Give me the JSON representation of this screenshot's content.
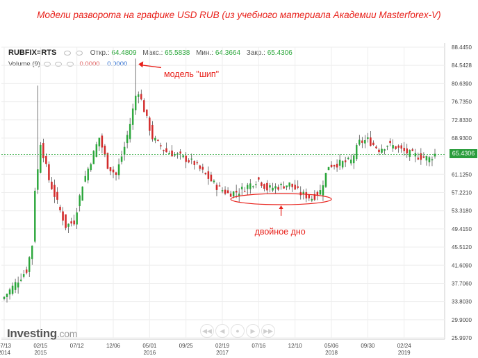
{
  "caption": "Модели разворота на графике USD RUB (из учебного материала Академии Masterforex-V)",
  "header": {
    "symbol": "RUBFIX=RTS",
    "open_label": "Откр.:",
    "open_value": "64.4809",
    "high_label": "Макс.:",
    "high_value": "65.5838",
    "low_label": "Мин.:",
    "low_value": "64.3664",
    "close_label": "Закр.:",
    "close_value": "65.4306"
  },
  "volume": {
    "label": "Volume (9)",
    "value_red": "0.0000",
    "value_blue": "0.0000"
  },
  "current_price_tag": "65.4306",
  "annotations": {
    "spike_label": "модель \"шип\"",
    "double_bottom_label": "двойное дно"
  },
  "logo": {
    "main": "Investing",
    "suffix": ".com"
  },
  "colors": {
    "up": "#2aa63a",
    "down": "#d22b2b",
    "annotation": "#e8201a",
    "price_line": "#2aa63a",
    "grid": "#eeeeee"
  },
  "chart_data": {
    "type": "candlestick",
    "y_ticks": [
      "88.4450",
      "84.5428",
      "80.6390",
      "76.7350",
      "72.8330",
      "68.9300",
      "65.0258",
      "61.1250",
      "57.2210",
      "53.3180",
      "49.4150",
      "45.5120",
      "41.6090",
      "37.7060",
      "33.8030",
      "29.9000",
      "25.9970"
    ],
    "ylim": [
      25.997,
      88.445
    ],
    "x_ticks": [
      {
        "label": "07/13",
        "year": "2014"
      },
      {
        "label": "02/15",
        "year": "2015"
      },
      {
        "label": "07/12",
        "year": ""
      },
      {
        "label": "12/06",
        "year": ""
      },
      {
        "label": "05/01",
        "year": "2016"
      },
      {
        "label": "09/25",
        "year": ""
      },
      {
        "label": "02/19",
        "year": "2017"
      },
      {
        "label": "07/16",
        "year": ""
      },
      {
        "label": "12/10",
        "year": ""
      },
      {
        "label": "05/06",
        "year": "2018"
      },
      {
        "label": "09/30",
        "year": ""
      },
      {
        "label": "02/24",
        "year": "2019"
      }
    ],
    "x_tick_index": [
      0,
      13,
      26,
      39,
      52,
      65,
      78,
      91,
      104,
      117,
      130,
      143
    ],
    "n_periods": 155,
    "close_path": [
      [
        0,
        34.8
      ],
      [
        8,
        40.5
      ],
      [
        10,
        46
      ],
      [
        11,
        58
      ],
      [
        12,
        62
      ],
      [
        13,
        68
      ],
      [
        16,
        60
      ],
      [
        19,
        55
      ],
      [
        22,
        50
      ],
      [
        25,
        51
      ],
      [
        28,
        59
      ],
      [
        31,
        64
      ],
      [
        34,
        69
      ],
      [
        37,
        63
      ],
      [
        40,
        61
      ],
      [
        43,
        67
      ],
      [
        45,
        72
      ],
      [
        47,
        78
      ],
      [
        48,
        79
      ],
      [
        50,
        75
      ],
      [
        53,
        69
      ],
      [
        58,
        66
      ],
      [
        63,
        65
      ],
      [
        68,
        63.5
      ],
      [
        72,
        61
      ],
      [
        76,
        58.5
      ],
      [
        80,
        57
      ],
      [
        84,
        57.5
      ],
      [
        88,
        59
      ],
      [
        91,
        60
      ],
      [
        94,
        58
      ],
      [
        98,
        58.5
      ],
      [
        102,
        59
      ],
      [
        106,
        57
      ],
      [
        110,
        56
      ],
      [
        113,
        57.5
      ],
      [
        116,
        63
      ],
      [
        120,
        63.5
      ],
      [
        124,
        64
      ],
      [
        127,
        68
      ],
      [
        130,
        68.5
      ],
      [
        134,
        66.5
      ],
      [
        137,
        67.5
      ],
      [
        140,
        67
      ],
      [
        143,
        66
      ],
      [
        148,
        65
      ],
      [
        152,
        64.5
      ],
      [
        154,
        65.43
      ]
    ],
    "spikes": [
      {
        "index": 12,
        "high": 80.2
      },
      {
        "index": 47,
        "high": 86.0
      }
    ],
    "double_bottom_range": [
      81,
      117
    ],
    "last_close": 65.4306,
    "type_note": "candlestick"
  }
}
